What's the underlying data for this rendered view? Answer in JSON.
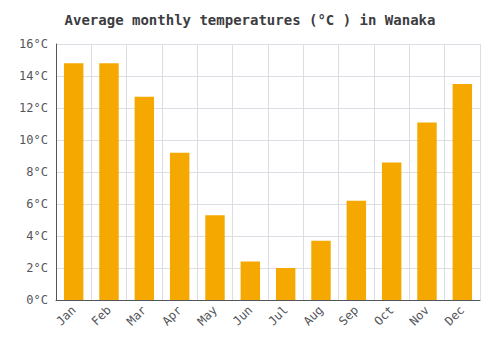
{
  "chart_data": {
    "type": "bar",
    "title": "Average monthly temperatures (°C ) in Wanaka",
    "categories": [
      "Jan",
      "Feb",
      "Mar",
      "Apr",
      "May",
      "Jun",
      "Jul",
      "Aug",
      "Sep",
      "Oct",
      "Nov",
      "Dec"
    ],
    "values": [
      14.8,
      14.8,
      12.7,
      9.2,
      5.3,
      2.4,
      2.0,
      3.7,
      6.2,
      8.6,
      11.1,
      13.5
    ],
    "color": "#F5A800",
    "ylim": [
      0,
      16
    ],
    "yticks": [
      {
        "value": 0,
        "label": "0°C"
      },
      {
        "value": 2,
        "label": "2°C"
      },
      {
        "value": 4,
        "label": "4°C"
      },
      {
        "value": 6,
        "label": "6°C"
      },
      {
        "value": 8,
        "label": "8°C"
      },
      {
        "value": 10,
        "label": "10°C"
      },
      {
        "value": 12,
        "label": "12°C"
      },
      {
        "value": 14,
        "label": "14°C"
      },
      {
        "value": 16,
        "label": "16°C"
      }
    ],
    "grid": true
  }
}
